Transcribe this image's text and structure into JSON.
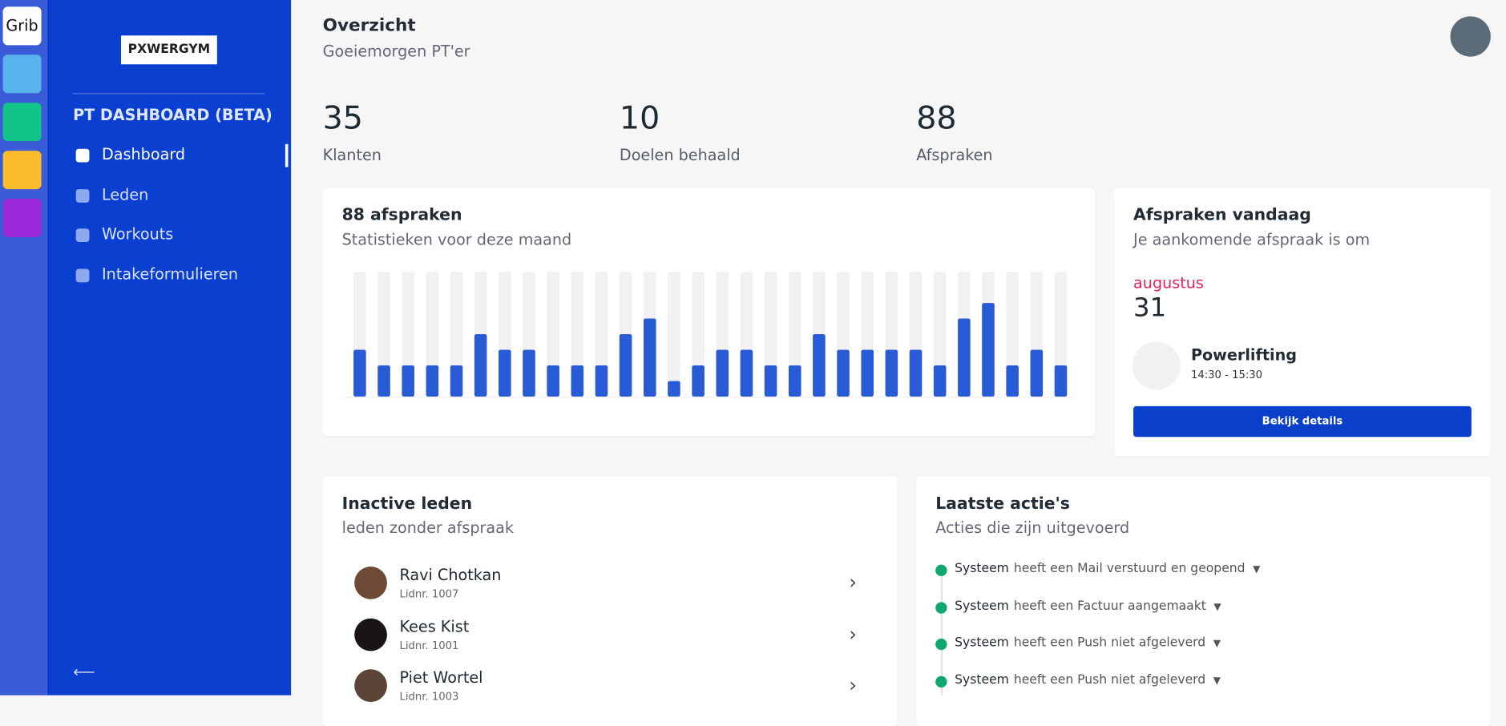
{
  "sidebar": {
    "app_icon": "Grib",
    "logo": "PXWERGYM",
    "section": "PT DASHBOARD (BETA)",
    "nav": [
      "Dashboard",
      "Leden",
      "Workouts",
      "Intakeformulieren"
    ]
  },
  "header": {
    "title": "Overzicht",
    "subtitle": "Goeiemorgen PT'er"
  },
  "stats": [
    {
      "value": 35,
      "label": "Klanten"
    },
    {
      "value": 10,
      "label": "Doelen behaald"
    },
    {
      "value": 88,
      "label": "Afspraken"
    }
  ],
  "chart_data": {
    "type": "bar",
    "title": "88 afspraken",
    "subtitle": "Statistieken voor deze maand",
    "categories": [
      null,
      null,
      null,
      null,
      null,
      null,
      null,
      null,
      null,
      null,
      null,
      null,
      null,
      null,
      null,
      null,
      null,
      null,
      null,
      null,
      null,
      null,
      null,
      null,
      null,
      null,
      null,
      null,
      null,
      null
    ],
    "values": [
      3,
      2,
      2,
      2,
      2,
      4,
      3,
      3,
      2,
      2,
      2,
      4,
      5,
      1,
      2,
      3,
      3,
      2,
      2,
      4,
      3,
      3,
      3,
      3,
      2,
      5,
      6,
      2,
      3,
      2
    ],
    "color": "#2a5bd7",
    "ylim": [
      0,
      8
    ]
  },
  "today": {
    "title": "Afspraken vandaag",
    "subtitle": "Je aankomende afspraak is om",
    "month": "augustus",
    "day": "31",
    "event": "Powerlifting",
    "time": "14:30 - 15:30",
    "button": "Bekijk details"
  },
  "inactive": {
    "title": "Inactive leden",
    "subtitle": "leden zonder afspraak",
    "members": [
      {
        "name": "Ravi Chotkan",
        "id": "Lidnr. 1007"
      },
      {
        "name": "Kees Kist",
        "id": "Lidnr. 1001"
      },
      {
        "name": "Piet Wortel",
        "id": "Lidnr. 1003"
      }
    ]
  },
  "actions": {
    "title": "Laatste actie's",
    "subtitle": "Acties die zijn uitgevoerd",
    "items": [
      {
        "actor": "Systeem",
        "text": "heeft een Mail verstuurd en geopend"
      },
      {
        "actor": "Systeem",
        "text": "heeft een Factuur aangemaakt"
      },
      {
        "actor": "Systeem",
        "text": "heeft een Push niet afgeleverd"
      },
      {
        "actor": "Systeem",
        "text": "heeft een Push niet afgeleverd"
      }
    ]
  }
}
